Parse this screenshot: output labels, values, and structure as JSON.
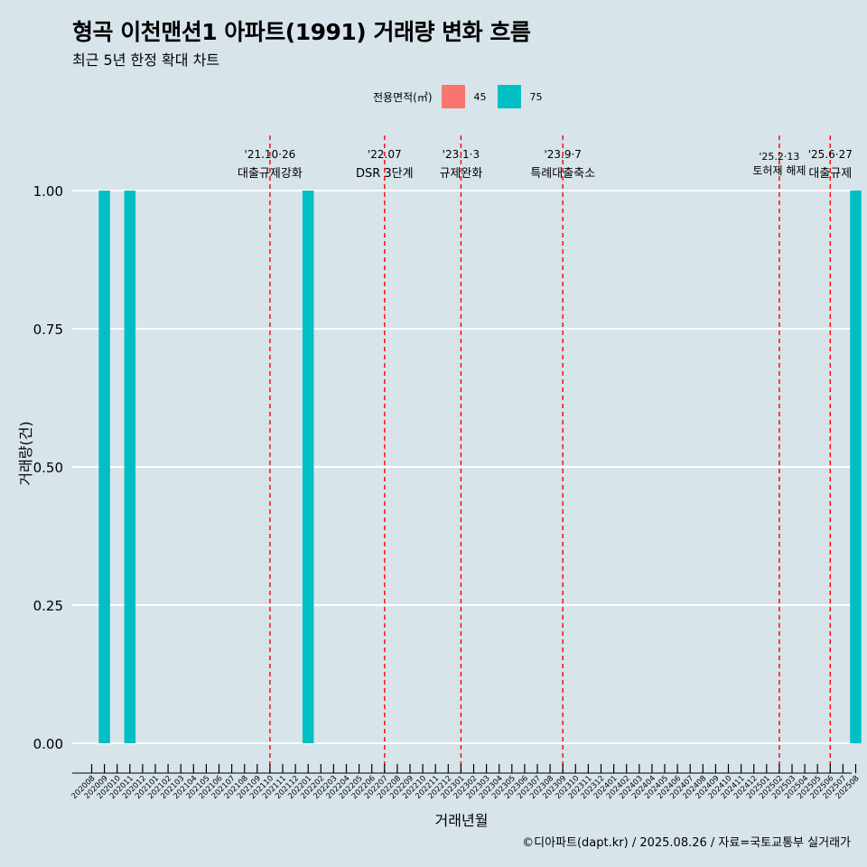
{
  "title": "형곡 이천맨션1 아파트(1991) 거래량 변화 흐름",
  "subtitle": "최근 5년 한정 확대 차트",
  "caption": "©디아파트(dapt.kr) / 2025.08.26 / 자료=국토교통부 실거래가",
  "legend": {
    "title": "전용면적(㎡)",
    "items": [
      {
        "label": "45",
        "color": "#F8766D"
      },
      {
        "label": "75",
        "color": "#00BFC4"
      }
    ]
  },
  "chart_data": {
    "type": "bar",
    "title": "형곡 이천맨션1 아파트(1991) 거래량 변화 흐름",
    "subtitle": "최근 5년 한정 확대 차트",
    "xlabel": "거래년월",
    "ylabel": "거래량(건)",
    "ylim": [
      0,
      1.0
    ],
    "yticks": [
      "0.00",
      "0.25",
      "0.50",
      "0.75",
      "1.00"
    ],
    "grid": true,
    "legend_position": "top",
    "categories": [
      "202008",
      "202009",
      "202010",
      "202011",
      "202012",
      "202101",
      "202102",
      "202103",
      "202104",
      "202105",
      "202106",
      "202107",
      "202108",
      "202109",
      "202110",
      "202111",
      "202112",
      "202201",
      "202202",
      "202203",
      "202204",
      "202205",
      "202206",
      "202207",
      "202208",
      "202209",
      "202210",
      "202211",
      "202212",
      "202301",
      "202302",
      "202303",
      "202304",
      "202305",
      "202306",
      "202307",
      "202308",
      "202309",
      "202310",
      "202311",
      "202312",
      "202401",
      "202402",
      "202403",
      "202404",
      "202405",
      "202406",
      "202407",
      "202408",
      "202409",
      "202410",
      "202411",
      "202412",
      "202501",
      "202502",
      "202503",
      "202504",
      "202505",
      "202506",
      "202507",
      "202508"
    ],
    "series": [
      {
        "name": "45",
        "color": "#F8766D",
        "values": [
          0,
          0,
          0,
          0,
          0,
          0,
          0,
          0,
          0,
          0,
          0,
          0,
          0,
          0,
          0,
          0,
          0,
          0,
          0,
          0,
          0,
          0,
          0,
          0,
          0,
          0,
          0,
          0,
          0,
          0,
          0,
          0,
          0,
          0,
          0,
          0,
          0,
          0,
          0,
          0,
          0,
          0,
          0,
          0,
          0,
          0,
          0,
          0,
          0,
          0,
          0,
          0,
          0,
          0,
          0,
          0,
          0,
          0,
          0,
          0,
          0
        ]
      },
      {
        "name": "75",
        "color": "#00BFC4",
        "values": [
          0,
          1,
          0,
          1,
          0,
          0,
          0,
          0,
          0,
          0,
          0,
          0,
          0,
          0,
          0,
          0,
          0,
          1,
          0,
          0,
          0,
          0,
          0,
          0,
          0,
          0,
          0,
          0,
          0,
          0,
          0,
          0,
          0,
          0,
          0,
          0,
          0,
          0,
          0,
          0,
          0,
          0,
          0,
          0,
          0,
          0,
          0,
          0,
          0,
          0,
          0,
          0,
          0,
          0,
          0,
          0,
          0,
          0,
          0,
          0,
          1
        ]
      }
    ],
    "annotations": [
      {
        "month": "202110",
        "date": "'21.10·26",
        "label": "대출규제강화"
      },
      {
        "month": "202207",
        "date": "'22.07",
        "label": "DSR 3단계"
      },
      {
        "month": "202301",
        "date": "'23.1·3",
        "label": "규제완화"
      },
      {
        "month": "202309",
        "date": "'23.9·7",
        "label": "특례대출축소"
      },
      {
        "month": "202502",
        "date": "'25.2·13",
        "label": "토허제 해제"
      },
      {
        "month": "202506",
        "date": "'25.6·27",
        "label": "대출규제"
      }
    ]
  }
}
